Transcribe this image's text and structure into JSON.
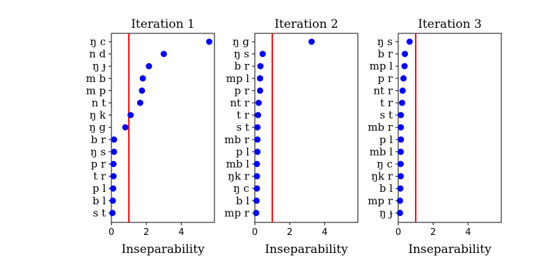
{
  "figure": {
    "colors": {
      "points": "#0000ff",
      "threshold": "#ff0000"
    }
  },
  "chart_data": [
    {
      "type": "scatter",
      "title": "Iteration 1",
      "xlabel": "Inseparability",
      "ylabel": "",
      "xlim": [
        0,
        5.9
      ],
      "xticks": [
        0,
        2,
        4
      ],
      "threshold": 1,
      "grid": false,
      "categories": [
        "ŋ c",
        "n d",
        "ŋ ɟ",
        "m b",
        "m p",
        "n t",
        "ŋ k",
        "ŋ g",
        "b r",
        "ŋ s",
        "p r",
        "t r",
        "p l",
        "b l",
        "s t"
      ],
      "values": [
        5.6,
        3.0,
        2.15,
        1.8,
        1.75,
        1.65,
        1.1,
        0.8,
        0.15,
        0.15,
        0.12,
        0.12,
        0.1,
        0.08,
        0.06
      ]
    },
    {
      "type": "scatter",
      "title": "Iteration 2",
      "xlabel": "Inseparability",
      "ylabel": "",
      "xlim": [
        0,
        5.9
      ],
      "xticks": [
        0,
        2,
        4
      ],
      "threshold": 1,
      "grid": false,
      "categories": [
        "ŋ g",
        "ŋ s",
        "b r",
        "mp l",
        "p r",
        "nt r",
        "t r",
        "s t",
        "mb r",
        "p l",
        "mb l",
        "ŋk r",
        "ŋ c",
        "b l",
        "mp r"
      ],
      "values": [
        3.25,
        0.45,
        0.32,
        0.3,
        0.3,
        0.22,
        0.18,
        0.15,
        0.15,
        0.15,
        0.12,
        0.12,
        0.12,
        0.1,
        0.08
      ]
    },
    {
      "type": "scatter",
      "title": "Iteration 3",
      "xlabel": "Inseparability",
      "ylabel": "",
      "xlim": [
        0,
        5.9
      ],
      "xticks": [
        0,
        2,
        4
      ],
      "threshold": 1,
      "grid": false,
      "categories": [
        "ŋ s",
        "b r",
        "mp l",
        "p r",
        "nt r",
        "t r",
        "s t",
        "mb r",
        "p l",
        "mb l",
        "ŋ c",
        "ŋk r",
        "b l",
        "mp r",
        "ŋ ɟ"
      ],
      "values": [
        0.65,
        0.38,
        0.36,
        0.3,
        0.25,
        0.22,
        0.15,
        0.15,
        0.15,
        0.14,
        0.14,
        0.14,
        0.12,
        0.1,
        0.1
      ]
    }
  ]
}
